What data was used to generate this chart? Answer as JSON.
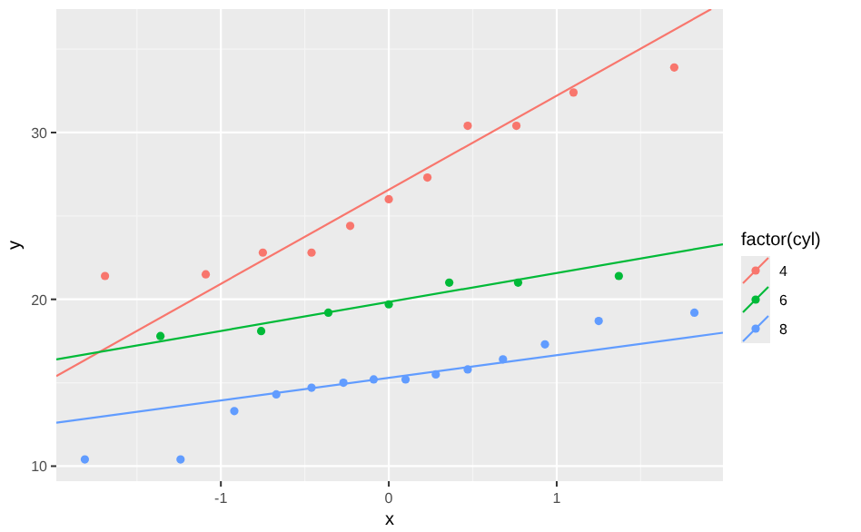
{
  "chart_data": {
    "type": "scatter",
    "xlabel": "x",
    "ylabel": "y",
    "legend_title": "factor(cyl)",
    "legend": "right",
    "grid": true,
    "xlim": [
      -1.98,
      1.99
    ],
    "ylim": [
      9.1,
      37.4
    ],
    "xticks": [
      -1,
      0,
      1
    ],
    "yticks": [
      10,
      20,
      30
    ],
    "series": [
      {
        "name": "4",
        "color": "#f8766d",
        "marker": "circle",
        "x": [
          -1.69,
          -1.09,
          -0.75,
          -0.46,
          -0.23,
          0,
          0.23,
          0.47,
          0.76,
          1.1,
          1.7
        ],
        "values": [
          21.4,
          21.5,
          22.8,
          22.8,
          24.4,
          26.0,
          27.3,
          30.4,
          30.4,
          32.4,
          33.9
        ]
      },
      {
        "name": "6",
        "color": "#00ba38",
        "marker": "circle",
        "x": [
          -1.36,
          -0.76,
          -0.36,
          0,
          0.36,
          0.77,
          1.37
        ],
        "values": [
          17.8,
          18.1,
          19.2,
          19.7,
          21.0,
          21.0,
          21.4
        ]
      },
      {
        "name": "8",
        "color": "#619cff",
        "marker": "circle",
        "x": [
          -1.81,
          -1.24,
          -0.92,
          -0.67,
          -0.46,
          -0.27,
          -0.09,
          0.1,
          0.28,
          0.47,
          0.68,
          0.93,
          1.25,
          1.82
        ],
        "values": [
          10.4,
          10.4,
          13.3,
          14.3,
          14.7,
          15.0,
          15.2,
          15.2,
          15.5,
          15.8,
          16.4,
          17.3,
          18.7,
          19.2
        ]
      },
      {
        "color": "#f8766d",
        "type": "line",
        "marker": "none",
        "x": [
          -1.98,
          1.92
        ],
        "values": [
          15.4,
          37.4
        ]
      },
      {
        "color": "#00ba38",
        "type": "line",
        "marker": "none",
        "x": [
          -1.98,
          1.99
        ],
        "values": [
          16.4,
          23.3
        ]
      },
      {
        "color": "#619cff",
        "type": "line",
        "marker": "none",
        "x": [
          -1.98,
          1.99
        ],
        "values": [
          12.6,
          18.0
        ]
      }
    ]
  }
}
